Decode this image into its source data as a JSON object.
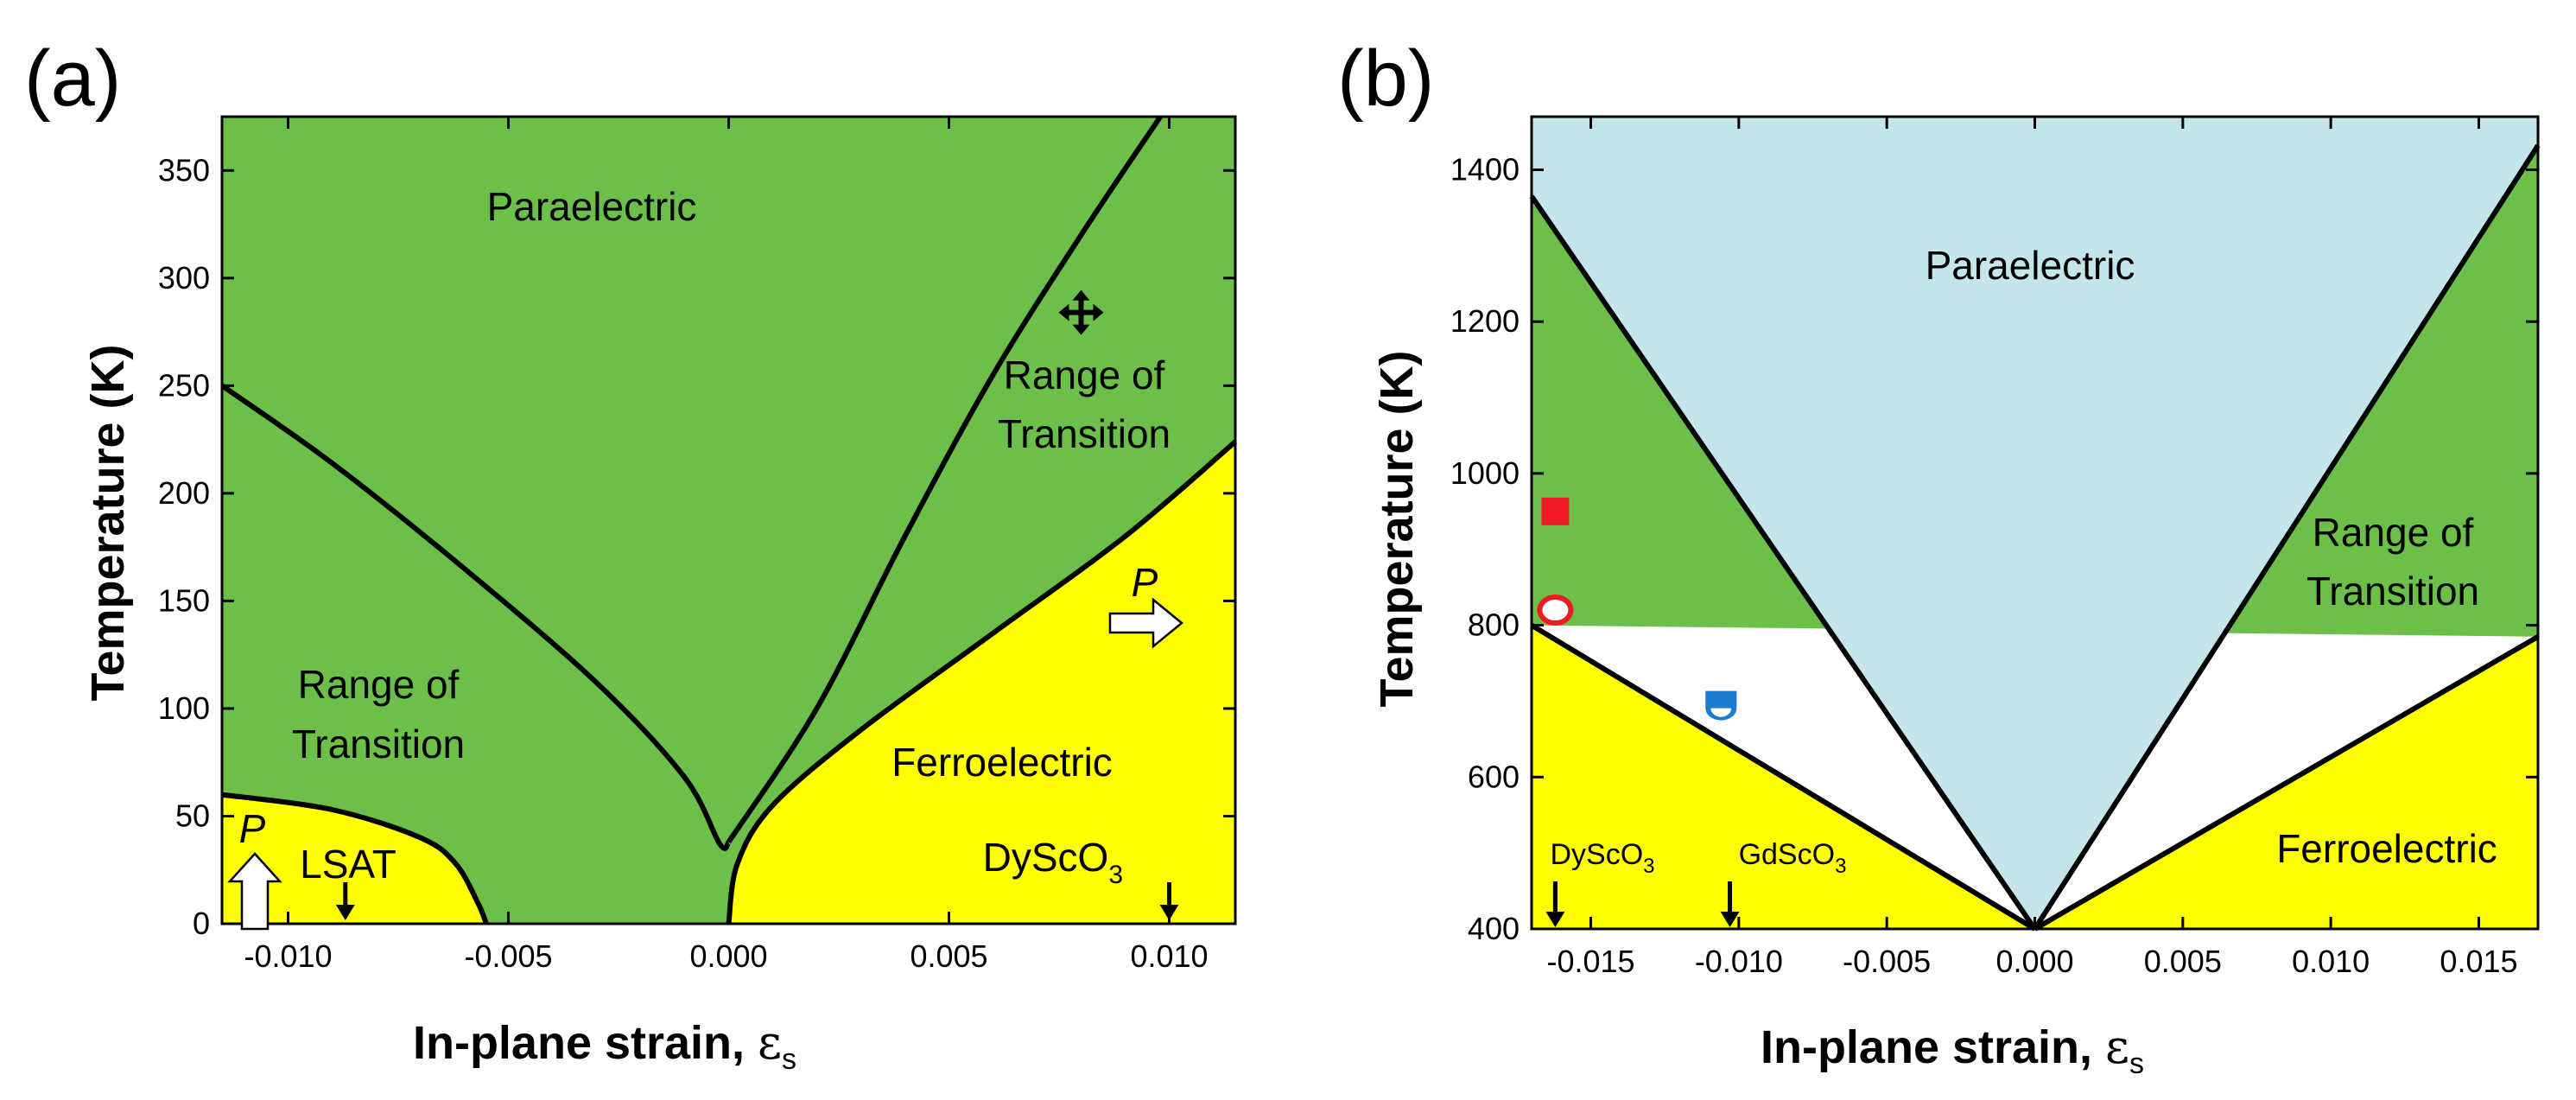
{
  "colors": {
    "paraelectric": "#c4e6ea",
    "transition": "#6cc04a",
    "ferroelectric": "#ffff00",
    "boundary": "#000000",
    "red_marker": "#ee1b24",
    "blue_marker": "#1c7bd1"
  },
  "chart_data": [
    {
      "panel": "(a)",
      "type": "phase-diagram",
      "xlabel": "In-plane strain, ",
      "xlabel_symbol": "ε",
      "xlabel_sub": "s",
      "ylabel": "Temperature (K)",
      "xlim": [
        -0.0115,
        0.0115
      ],
      "ylim": [
        0,
        375
      ],
      "xticks": [
        -0.01,
        -0.005,
        0.0,
        0.005,
        0.01
      ],
      "xtick_labels": [
        "-0.010",
        "-0.005",
        "0.000",
        "0.005",
        "0.010"
      ],
      "yticks": [
        0,
        50,
        100,
        150,
        200,
        250,
        300,
        350
      ],
      "ytick_labels": [
        "0",
        "50",
        "100",
        "150",
        "200",
        "250",
        "300",
        "350"
      ],
      "regions": {
        "paraelectric": "Paraelectric",
        "transition_left_1": "Range of",
        "transition_left_2": "Transition",
        "transition_right_1": "Range of",
        "transition_right_2": "Transition",
        "ferroelectric": "Ferroelectric"
      },
      "boundaries": {
        "upper_left": [
          [
            -0.0115,
            250
          ],
          [
            -0.009,
            214
          ],
          [
            -0.006,
            165
          ],
          [
            -0.003,
            112
          ],
          [
            -0.001,
            68
          ],
          [
            -0.0002,
            37
          ],
          [
            0.0,
            38
          ]
        ],
        "upper_right": [
          [
            0.0,
            38
          ],
          [
            0.002,
            100
          ],
          [
            0.004,
            180
          ],
          [
            0.006,
            255
          ],
          [
            0.008,
            320
          ],
          [
            0.0098,
            375
          ]
        ],
        "lower_right": [
          [
            0.0,
            0
          ],
          [
            0.0002,
            28
          ],
          [
            0.001,
            55
          ],
          [
            0.003,
            90
          ],
          [
            0.006,
            135
          ],
          [
            0.009,
            180
          ],
          [
            0.0115,
            224
          ]
        ],
        "lower_left": [
          [
            -0.0115,
            60
          ],
          [
            -0.009,
            53
          ],
          [
            -0.007,
            40
          ],
          [
            -0.0062,
            28
          ],
          [
            -0.0057,
            10
          ],
          [
            -0.0055,
            0
          ]
        ]
      },
      "substrates": [
        {
          "name": "LSAT",
          "strain": -0.0087
        },
        {
          "name": "DyScO",
          "sub": "3",
          "strain": 0.01
        }
      ],
      "polarization_label": "P",
      "markers": [
        {
          "shape": "cross-arrows",
          "strain": 0.008,
          "T": 284
        }
      ]
    },
    {
      "panel": "(b)",
      "type": "phase-diagram",
      "xlabel": "In-plane strain, ",
      "xlabel_symbol": "ε",
      "xlabel_sub": "s",
      "ylabel": "Temperature (K)",
      "xlim": [
        -0.017,
        0.017
      ],
      "ylim": [
        400,
        1470
      ],
      "xticks": [
        -0.015,
        -0.01,
        -0.005,
        0.0,
        0.005,
        0.01,
        0.015
      ],
      "xtick_labels": [
        "-0.015",
        "-0.010",
        "-0.005",
        "0.000",
        "0.005",
        "0.010",
        "0.015"
      ],
      "yticks": [
        400,
        600,
        800,
        1000,
        1200,
        1400
      ],
      "ytick_labels": [
        "400",
        "600",
        "800",
        "1000",
        "1200",
        "1400"
      ],
      "regions": {
        "paraelectric": "Paraelectric",
        "transition_right_1": "Range of",
        "transition_right_2": "Transition",
        "ferroelectric": "Ferroelectric"
      },
      "boundaries": {
        "upper_left": [
          [
            -0.017,
            1365
          ],
          [
            0.0,
            400
          ]
        ],
        "upper_right": [
          [
            0.0,
            400
          ],
          [
            0.017,
            1432
          ]
        ],
        "lower_left": [
          [
            -0.017,
            800
          ],
          [
            0.0,
            400
          ]
        ],
        "lower_right": [
          [
            0.0,
            400
          ],
          [
            0.017,
            785
          ]
        ]
      },
      "substrates": [
        {
          "name": "DyScO",
          "sub": "3",
          "strain": -0.0162
        },
        {
          "name": "GdScO",
          "sub": "3",
          "strain": -0.0103
        }
      ],
      "markers": [
        {
          "shape": "filled-square",
          "color": "red",
          "strain": -0.0162,
          "T": 950
        },
        {
          "shape": "open-circle",
          "color": "red",
          "strain": -0.0162,
          "T": 820
        },
        {
          "shape": "half-filled-square",
          "color": "blue",
          "strain": -0.0106,
          "T": 693
        }
      ]
    }
  ]
}
